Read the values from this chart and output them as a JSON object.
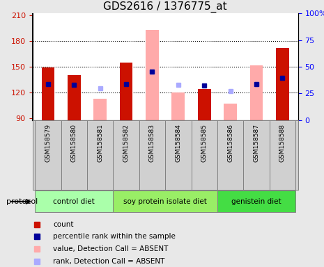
{
  "title": "GDS2616 / 1376775_at",
  "samples": [
    "GSM158579",
    "GSM158580",
    "GSM158581",
    "GSM158582",
    "GSM158583",
    "GSM158584",
    "GSM158585",
    "GSM158586",
    "GSM158587",
    "GSM158588"
  ],
  "groups": [
    {
      "label": "control diet",
      "indices": [
        0,
        1,
        2
      ],
      "color": "#aaffaa"
    },
    {
      "label": "soy protein isolate diet",
      "indices": [
        3,
        4,
        5,
        6
      ],
      "color": "#99ee66"
    },
    {
      "label": "genistein diet",
      "indices": [
        7,
        8,
        9
      ],
      "color": "#44dd44"
    }
  ],
  "count_values": [
    149,
    140,
    null,
    155,
    null,
    null,
    124,
    null,
    null,
    172
  ],
  "count_color": "#cc1100",
  "absent_value_bars": [
    null,
    null,
    113,
    null,
    193,
    120,
    null,
    107,
    152,
    null
  ],
  "absent_value_color": "#ffaaaa",
  "percentile_rank_present": [
    130,
    129,
    null,
    130,
    144,
    null,
    128,
    null,
    130,
    137
  ],
  "percentile_rank_present_color": "#000099",
  "rank_absent": [
    null,
    null,
    125,
    null,
    144,
    129,
    null,
    122,
    130,
    null
  ],
  "rank_absent_color": "#aaaaff",
  "ylim_left": [
    88,
    212
  ],
  "ylim_right": [
    0,
    100
  ],
  "yticks_left": [
    90,
    120,
    150,
    180,
    210
  ],
  "yticks_right": [
    0,
    25,
    50,
    75,
    100
  ],
  "ylabel_right_ticks": [
    "0",
    "25",
    "50",
    "75",
    "100%"
  ],
  "bar_width": 0.5,
  "background_color": "#e8e8e8",
  "plot_bg_color": "#ffffff",
  "xtick_bg_color": "#d0d0d0",
  "title_fontsize": 11,
  "tick_fontsize": 8,
  "legend_items": [
    {
      "color": "#cc1100",
      "label": "count",
      "marker": "s"
    },
    {
      "color": "#000099",
      "label": "percentile rank within the sample",
      "marker": "s"
    },
    {
      "color": "#ffaaaa",
      "label": "value, Detection Call = ABSENT",
      "marker": "s"
    },
    {
      "color": "#aaaaff",
      "label": "rank, Detection Call = ABSENT",
      "marker": "s"
    }
  ]
}
